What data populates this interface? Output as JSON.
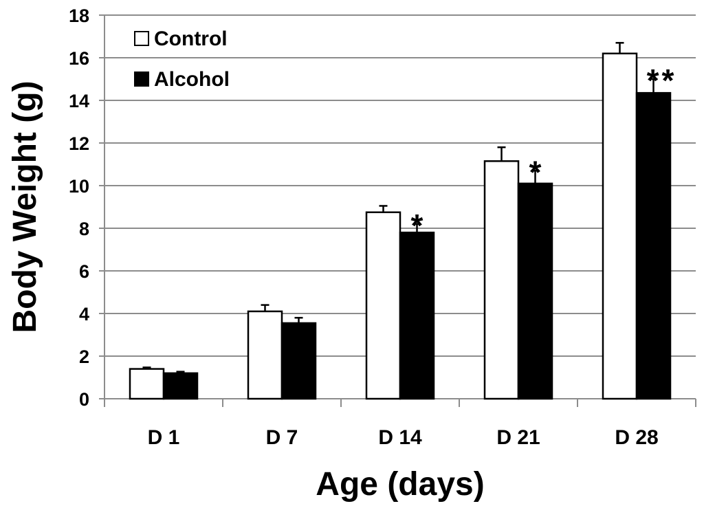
{
  "chart_data": {
    "type": "bar",
    "title": "",
    "xlabel": "Age (days)",
    "ylabel": "Body Weight (g)",
    "ylim": [
      0,
      18
    ],
    "yticks": [
      0,
      2,
      4,
      6,
      8,
      10,
      12,
      14,
      16,
      18
    ],
    "grid": true,
    "legend_position": "top-left",
    "categories": [
      "D 1",
      "D 7",
      "D 14",
      "D 21",
      "D 28"
    ],
    "series": [
      {
        "name": "Control",
        "color": "#ffffff",
        "values": [
          1.4,
          4.1,
          8.75,
          11.15,
          16.2
        ],
        "errors": [
          0.07,
          0.3,
          0.3,
          0.65,
          0.5
        ]
      },
      {
        "name": "Alcohol",
        "color": "#000000",
        "values": [
          1.2,
          3.55,
          7.8,
          10.1,
          14.35
        ],
        "errors": [
          0.07,
          0.25,
          0.4,
          0.6,
          0.65
        ]
      }
    ],
    "annotations": [
      "",
      "",
      "*",
      "*",
      "**"
    ],
    "colors": {
      "grid": "#8c8c8c",
      "axis": "#8c8c8c",
      "bar_outline": "#000000"
    }
  }
}
